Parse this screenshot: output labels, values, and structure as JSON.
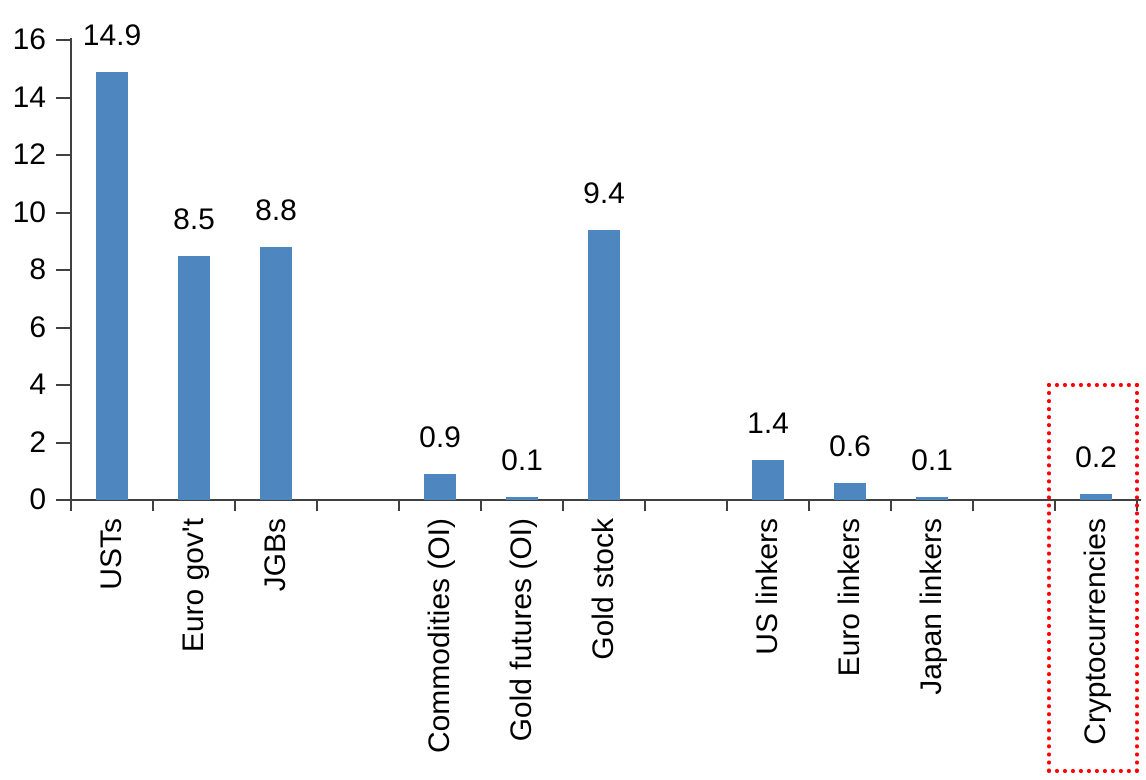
{
  "chart_data": {
    "type": "bar",
    "title": "",
    "xlabel": "",
    "ylabel": "",
    "categories": [
      "USTs",
      "Euro gov't",
      "JGBs",
      "Commodities (OI)",
      "Gold futures (OI)",
      "Gold stock",
      "US linkers",
      "Euro linkers",
      "Japan linkers",
      "Cryptocurrencies"
    ],
    "values": [
      14.9,
      8.5,
      8.8,
      0.9,
      0.1,
      9.4,
      1.4,
      0.6,
      0.1,
      0.2
    ],
    "value_labels": [
      "14.9",
      "8.5",
      "8.8",
      "0.9",
      "0.1",
      "9.4",
      "1.4",
      "0.6",
      "0.1",
      "0.2"
    ],
    "groups": [
      3,
      3,
      3,
      1
    ],
    "yticks": [
      "16",
      "14",
      "12",
      "10",
      "8",
      "6",
      "4",
      "2",
      "0"
    ],
    "ytick_values": [
      16,
      14,
      12,
      10,
      8,
      6,
      4,
      2,
      0
    ],
    "ylim": [
      0,
      16
    ],
    "grid": false,
    "legend_position": "none",
    "bar_color": "#4E86C0",
    "axis_color": "#404040",
    "text_color": "#000000",
    "highlight": {
      "category": "Cryptocurrencies",
      "shape": "dotted-rectangle",
      "color": "#FF0000"
    }
  }
}
